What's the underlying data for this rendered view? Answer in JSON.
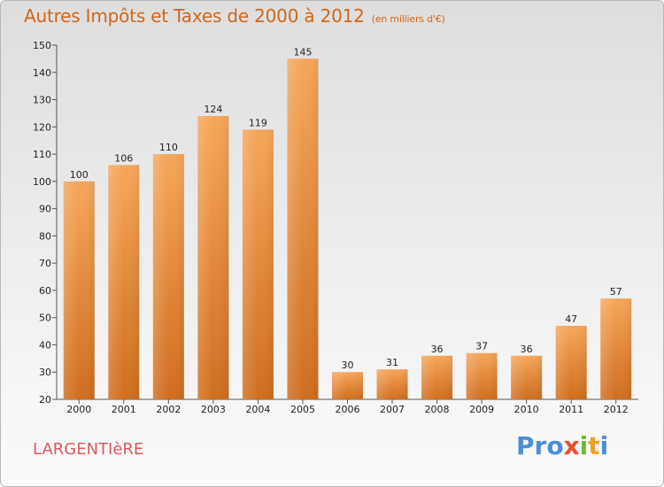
{
  "chart_data": {
    "type": "bar",
    "title": "Autres Impôts et Taxes de 2000 à 2012",
    "subtitle": "(en milliers d'€)",
    "categories": [
      "2000",
      "2001",
      "2002",
      "2003",
      "2004",
      "2005",
      "2006",
      "2007",
      "2008",
      "2009",
      "2010",
      "2011",
      "2012"
    ],
    "values": [
      100,
      106,
      110,
      124,
      119,
      145,
      30,
      31,
      36,
      37,
      36,
      47,
      57
    ],
    "xlabel": "",
    "ylabel": "",
    "ylim": [
      20,
      150
    ],
    "yticks": [
      20,
      30,
      40,
      50,
      60,
      70,
      80,
      90,
      100,
      110,
      120,
      130,
      140,
      150
    ],
    "grid": false,
    "bar_color": "#e8873a"
  },
  "footer": {
    "commune": "LARGENTIèRE",
    "logo": {
      "p1": "Pro",
      "x": "x",
      "i1": "i",
      "t": "t",
      "i2": "i"
    }
  }
}
